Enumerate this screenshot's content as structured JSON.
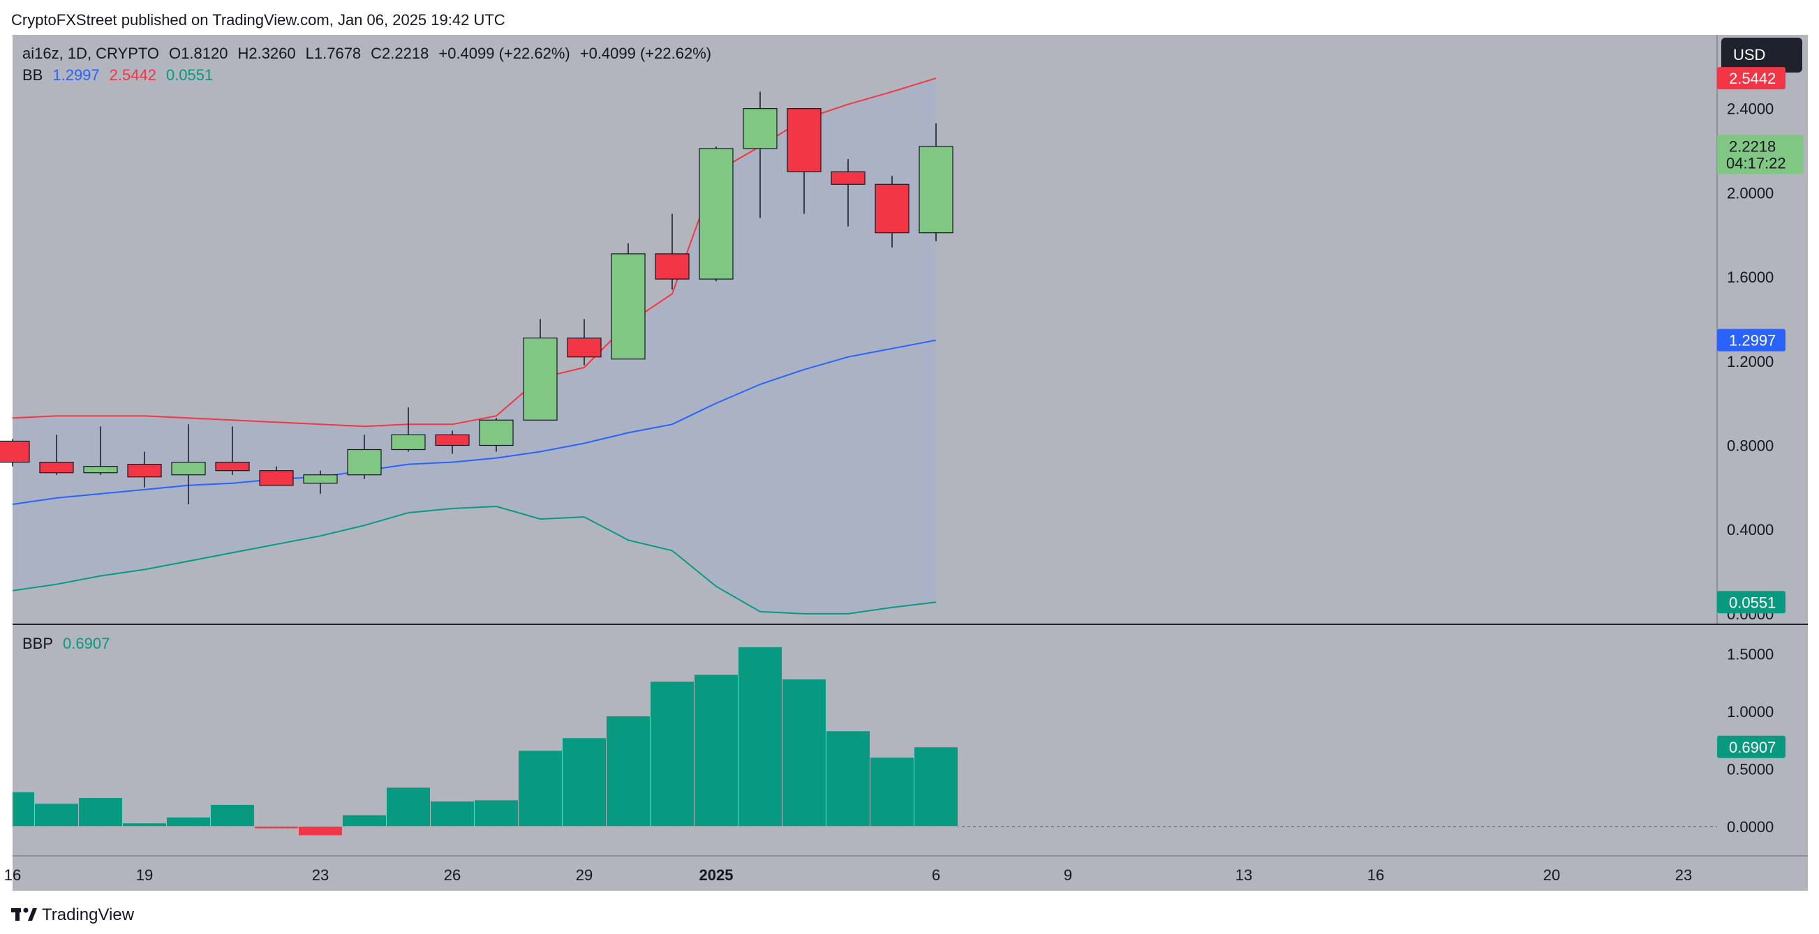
{
  "publisher": "CryptoFXStreet published on TradingView.com, Jan 06, 2025 19:42 UTC",
  "currency_button": "USD",
  "legend": {
    "symbol": "ai16z, 1D, CRYPTO",
    "open": "O1.8120",
    "high": "H2.3260",
    "low": "L1.7678",
    "close": "C2.2218",
    "change1": "+0.4099 (+22.62%)",
    "change2": "+0.4099 (+22.62%)",
    "bb_label": "BB",
    "bb_basis": "1.2997",
    "bb_upper": "2.5442",
    "bb_lower": "0.0551"
  },
  "bbp_legend": {
    "label": "BBP",
    "value": "0.6907"
  },
  "price_tags": {
    "upper": "2.5442",
    "close": "2.2218",
    "countdown": "04:17:22",
    "basis": "1.2997",
    "lower": "0.0551",
    "bbp": "0.6907"
  },
  "footer_brand": "TradingView",
  "colors": {
    "up": "#81c784",
    "down": "#f23645",
    "basis": "#2962ff",
    "upper": "#f23645",
    "lower": "#089981",
    "bbp": "#089981",
    "pane_bg": "#b2b5be",
    "band_fill": "#a9b2c6"
  },
  "chart_data": [
    {
      "type": "candlestick",
      "title": "ai16z, 1D, CRYPTO",
      "x": [
        "Dec 16",
        "Dec 17",
        "Dec 18",
        "Dec 19",
        "Dec 20",
        "Dec 21",
        "Dec 22",
        "Dec 23",
        "Dec 24",
        "Dec 25",
        "Dec 26",
        "Dec 27",
        "Dec 28",
        "Dec 29",
        "Dec 30",
        "Dec 31",
        "Jan 1",
        "Jan 2",
        "Jan 3",
        "Jan 4",
        "Jan 5",
        "Jan 6"
      ],
      "ohlc": [
        [
          0.82,
          0.83,
          0.7,
          0.72
        ],
        [
          0.72,
          0.85,
          0.66,
          0.67
        ],
        [
          0.67,
          0.89,
          0.66,
          0.7
        ],
        [
          0.71,
          0.77,
          0.6,
          0.65
        ],
        [
          0.66,
          0.9,
          0.52,
          0.72
        ],
        [
          0.72,
          0.89,
          0.66,
          0.68
        ],
        [
          0.68,
          0.7,
          0.61,
          0.61
        ],
        [
          0.62,
          0.68,
          0.57,
          0.66
        ],
        [
          0.66,
          0.85,
          0.64,
          0.78
        ],
        [
          0.78,
          0.98,
          0.77,
          0.85
        ],
        [
          0.85,
          0.87,
          0.76,
          0.8
        ],
        [
          0.8,
          0.93,
          0.77,
          0.92
        ],
        [
          0.92,
          1.4,
          0.92,
          1.31
        ],
        [
          1.31,
          1.4,
          1.18,
          1.22
        ],
        [
          1.21,
          1.76,
          1.21,
          1.71
        ],
        [
          1.71,
          1.9,
          1.54,
          1.59
        ],
        [
          1.59,
          2.22,
          1.58,
          2.21
        ],
        [
          2.21,
          2.48,
          1.88,
          2.4
        ],
        [
          2.4,
          2.4,
          1.9,
          2.1
        ],
        [
          2.1,
          2.16,
          1.84,
          2.04
        ],
        [
          2.04,
          2.08,
          1.74,
          1.81
        ],
        [
          1.81,
          2.33,
          1.77,
          2.22
        ]
      ],
      "bb_upper": [
        0.93,
        0.94,
        0.94,
        0.94,
        0.93,
        0.92,
        0.91,
        0.9,
        0.89,
        0.9,
        0.9,
        0.94,
        1.12,
        1.17,
        1.38,
        1.52,
        2.1,
        2.22,
        2.35,
        2.42,
        2.48,
        2.5442
      ],
      "bb_basis": [
        0.52,
        0.55,
        0.57,
        0.59,
        0.61,
        0.62,
        0.64,
        0.65,
        0.68,
        0.71,
        0.72,
        0.74,
        0.77,
        0.81,
        0.86,
        0.9,
        1.0,
        1.09,
        1.16,
        1.22,
        1.26,
        1.2997
      ],
      "bb_lower": [
        0.11,
        0.14,
        0.18,
        0.21,
        0.25,
        0.29,
        0.33,
        0.37,
        0.42,
        0.48,
        0.5,
        0.51,
        0.45,
        0.46,
        0.35,
        0.3,
        0.13,
        0.01,
        0.0,
        0.0,
        0.03,
        0.0551
      ],
      "ylim": [
        -0.05,
        2.75
      ],
      "yticks": [
        "2.4000",
        "2.0000",
        "1.6000",
        "1.2000",
        "0.8000",
        "0.4000",
        "0.0000"
      ],
      "xticks": [
        "16",
        "19",
        "23",
        "26",
        "29",
        "2025",
        "6",
        "9",
        "13",
        "16",
        "20",
        "23"
      ]
    },
    {
      "type": "bar",
      "title": "BBP",
      "x": [
        "Dec 16",
        "Dec 17",
        "Dec 18",
        "Dec 19",
        "Dec 20",
        "Dec 21",
        "Dec 22",
        "Dec 23",
        "Dec 24",
        "Dec 25",
        "Dec 26",
        "Dec 27",
        "Dec 28",
        "Dec 29",
        "Dec 30",
        "Dec 31",
        "Jan 1",
        "Jan 2",
        "Jan 3",
        "Jan 4",
        "Jan 5",
        "Jan 6"
      ],
      "values": [
        0.3,
        0.2,
        0.25,
        0.03,
        0.08,
        0.19,
        -0.02,
        -0.08,
        0.1,
        0.34,
        0.22,
        0.23,
        0.66,
        0.77,
        0.96,
        1.26,
        1.32,
        1.56,
        1.28,
        0.83,
        0.6,
        0.6907
      ],
      "ylim": [
        -0.25,
        1.75
      ],
      "yticks": [
        "1.5000",
        "1.0000",
        "0.5000",
        "0.0000"
      ]
    }
  ]
}
